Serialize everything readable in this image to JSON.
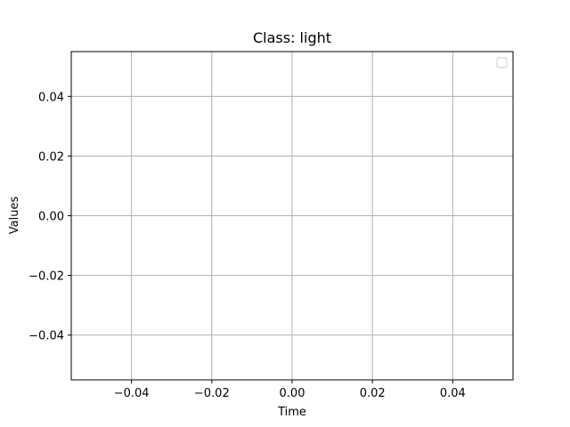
{
  "chart_data": {
    "type": "line",
    "title": "Class: light",
    "xlabel": "Time",
    "ylabel": "Values",
    "xlim": [
      -0.055,
      0.055
    ],
    "ylim": [
      -0.055,
      0.055
    ],
    "x_ticks": [
      -0.04,
      -0.02,
      0.0,
      0.02,
      0.04
    ],
    "x_tick_labels": [
      "−0.04",
      "−0.02",
      "0.00",
      "0.02",
      "0.04"
    ],
    "y_ticks": [
      0.04,
      0.02,
      0.0,
      -0.02,
      -0.04
    ],
    "y_tick_labels": [
      "0.04",
      "0.02",
      "0.00",
      "−0.02",
      "−0.04"
    ],
    "grid": true,
    "legend": {
      "placement": "top-right",
      "entries": []
    },
    "series": []
  },
  "colors": {
    "grid": "#b0b0b0",
    "axes": "#000000",
    "legend_border": "#cccccc"
  }
}
